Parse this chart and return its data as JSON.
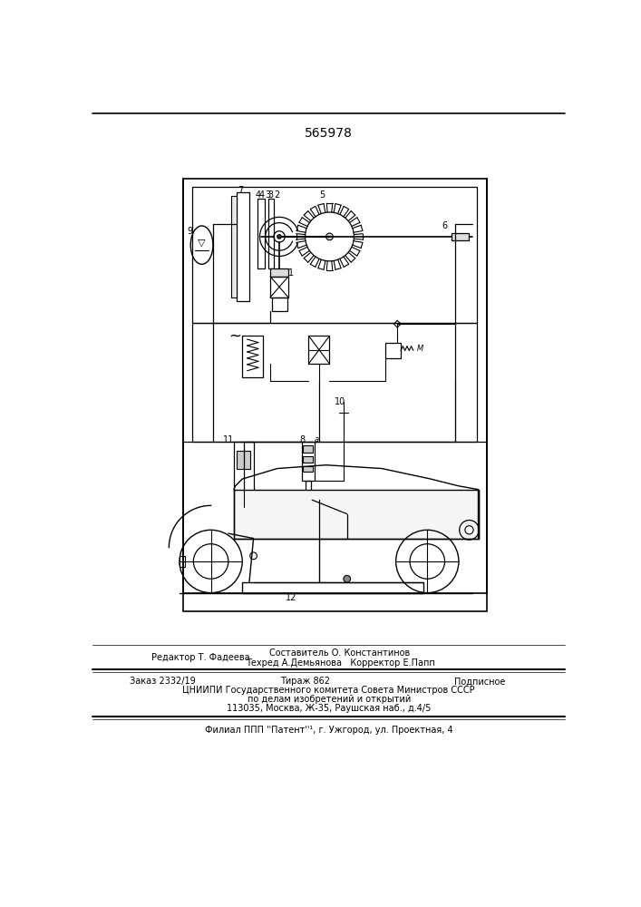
{
  "patent_number": "565978",
  "bg": "#ffffff",
  "lc": "#000000",
  "fig_width": 7.07,
  "fig_height": 10.0,
  "dpi": 100,
  "footer": {
    "editor_line": "Редактор Т. Фадеева",
    "compiler_line1": "Составитель О. Константинов",
    "compiler_line2": "Техред А.Демьянова   Корректор Е.Папп",
    "order_line": "Заказ 2332/19",
    "tirazh_line": "Тираж 862",
    "podpisnoe_line": "Подписное",
    "cnipi_line1": "ЦНИИПИ Государственного комитета Совета Министров СССР",
    "cnipi_line2": "по делам изобретений и открытий",
    "address_line": "113035, Москва, Ж-35, Раушская наб., д.4/5",
    "filial_line": "Филиал ППП ''Патент''¹, г. Ужгород, ул. Проектная, 4"
  }
}
